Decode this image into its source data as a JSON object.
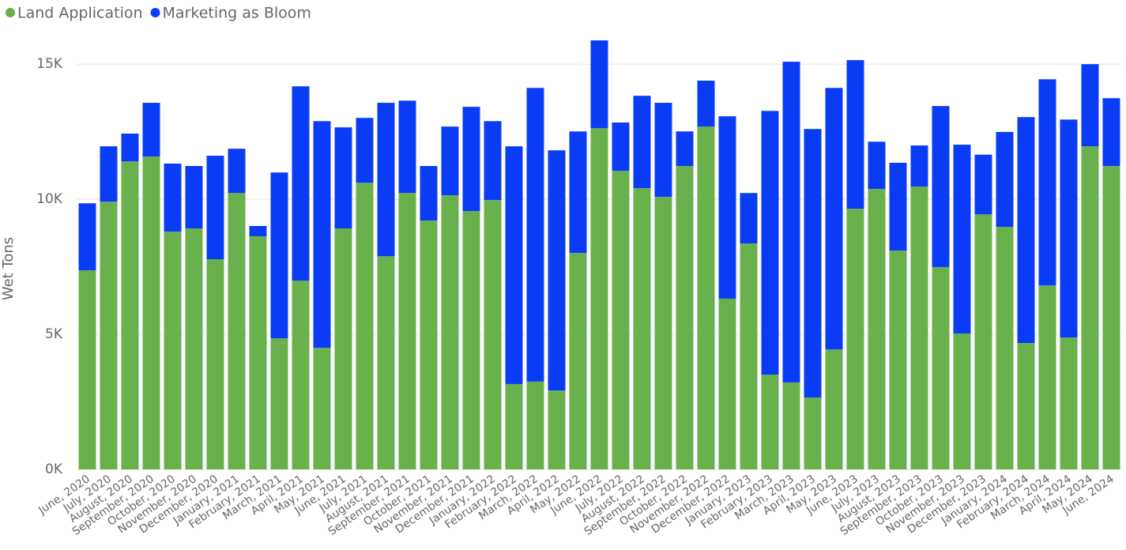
{
  "chart_data": {
    "type": "stacked_bar",
    "y_label": "Wet Tons",
    "categories": [
      "June, 2020",
      "July, 2020",
      "August, 2020",
      "September, 2020",
      "October, 2020",
      "November, 2020",
      "December, 2020",
      "January, 2021",
      "February, 2021",
      "March, 2021",
      "April, 2021",
      "May, 2021",
      "June, 2021",
      "July, 2021",
      "August, 2021",
      "September, 2021",
      "October, 2021",
      "November, 2021",
      "December, 2021",
      "January, 2022",
      "February, 2022",
      "March, 2022",
      "April, 2022",
      "May, 2022",
      "June, 2022",
      "July, 2022",
      "August, 2022",
      "September, 2022",
      "October, 2022",
      "November, 2022",
      "December, 2022",
      "January, 2023",
      "February, 2023",
      "March, 2023",
      "April, 2023",
      "May, 2023",
      "June, 2023",
      "July, 2023",
      "August, 2023",
      "September, 2023",
      "October, 2023",
      "November, 2023",
      "December, 2023",
      "January, 2024",
      "February, 2024",
      "March, 2024",
      "April, 2024",
      "May, 2024",
      "June, 2024"
    ],
    "series": [
      {
        "name": "Land Application",
        "color": "#6ab04c",
        "values": [
          7370,
          9910,
          11400,
          11580,
          8800,
          8920,
          7780,
          10230,
          8630,
          4850,
          6990,
          4500,
          8920,
          10610,
          7890,
          10230,
          9210,
          10150,
          9560,
          9970,
          3160,
          3250,
          2920,
          8010,
          12630,
          11050,
          10410,
          10090,
          11230,
          12690,
          6320,
          8360,
          3510,
          3220,
          2660,
          4440,
          9650,
          10380,
          8100,
          10470,
          7490,
          5030,
          9440,
          8980,
          4680,
          6810,
          4880,
          11960,
          11230
        ]
      },
      {
        "name": "Marketing as Bloom",
        "color": "#0a3cf5",
        "values": [
          2480,
          2050,
          1030,
          1990,
          2520,
          2310,
          3830,
          1640,
          380,
          6140,
          7190,
          8390,
          3740,
          2400,
          5680,
          3420,
          2020,
          2540,
          3860,
          2920,
          8800,
          10870,
          8890,
          4500,
          3250,
          1790,
          3420,
          3480,
          1280,
          1700,
          6750,
          1870,
          9760,
          11870,
          9940,
          9680,
          5500,
          1750,
          3250,
          1520,
          5960,
          6990,
          2210,
          3510,
          8360,
          7630,
          8070,
          3040,
          2510
        ]
      }
    ],
    "ylim": [
      0,
      16000
    ],
    "yticks": [
      {
        "value": 0,
        "label": "0K"
      },
      {
        "value": 5000,
        "label": "5K"
      },
      {
        "value": 10000,
        "label": "10K"
      },
      {
        "value": 15000,
        "label": "15K"
      }
    ],
    "grid": true,
    "legend": "top-left"
  }
}
